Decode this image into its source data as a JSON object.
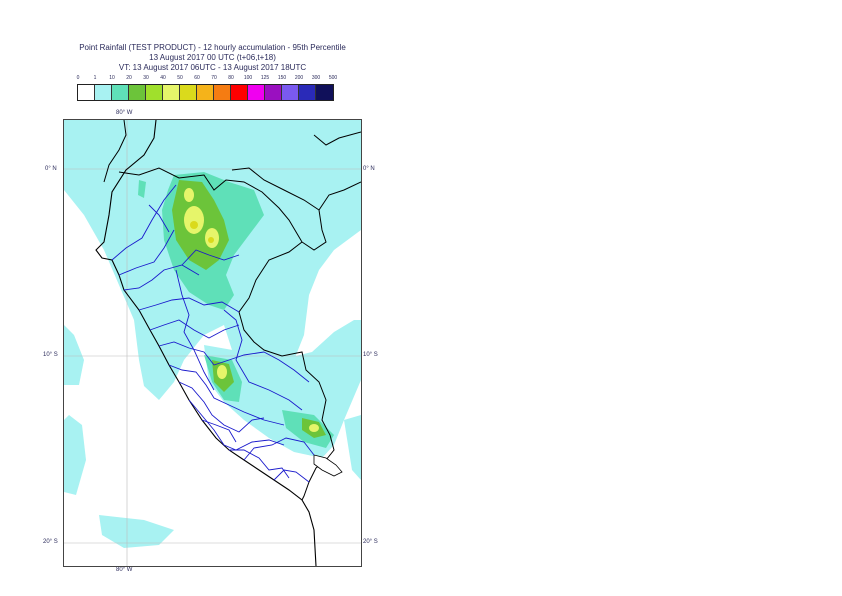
{
  "title": {
    "line1": "Point Rainfall (TEST PRODUCT) - 12 hourly accumulation - 95th Percentile",
    "line2": "13 August 2017 00 UTC (t+06,t+18)",
    "line3": "VT: 13 August 2017 06UTC - 13 August 2017 18UTC"
  },
  "legend": {
    "thresholds": [
      "0",
      "1",
      "10",
      "20",
      "30",
      "40",
      "50",
      "60",
      "70",
      "80",
      "100",
      "125",
      "150",
      "200",
      "300",
      "500"
    ],
    "colors": [
      "#ffffff",
      "#a8f2f2",
      "#5fe0b8",
      "#6cc43a",
      "#a0e02c",
      "#e6f56a",
      "#dada1c",
      "#f5b31a",
      "#f57c12",
      "#ff0000",
      "#f000f0",
      "#9a10c0",
      "#7a5af0",
      "#2a2ab8",
      "#10105a"
    ]
  },
  "axes": {
    "top_lon": "80° W",
    "bottom_lon": "80° W",
    "lat_labels": [
      "0° N",
      "10° S",
      "20° S"
    ]
  },
  "colors": {
    "rain_light": "#a8f2f2",
    "rain_mid": "#5fe0b8",
    "rain_green": "#6cc43a",
    "rain_lime": "#a0e02c",
    "rain_yellow": "#e6f56a",
    "border": "#000000",
    "region_border": "#1a1acc",
    "grid": "#bbbbbb"
  }
}
